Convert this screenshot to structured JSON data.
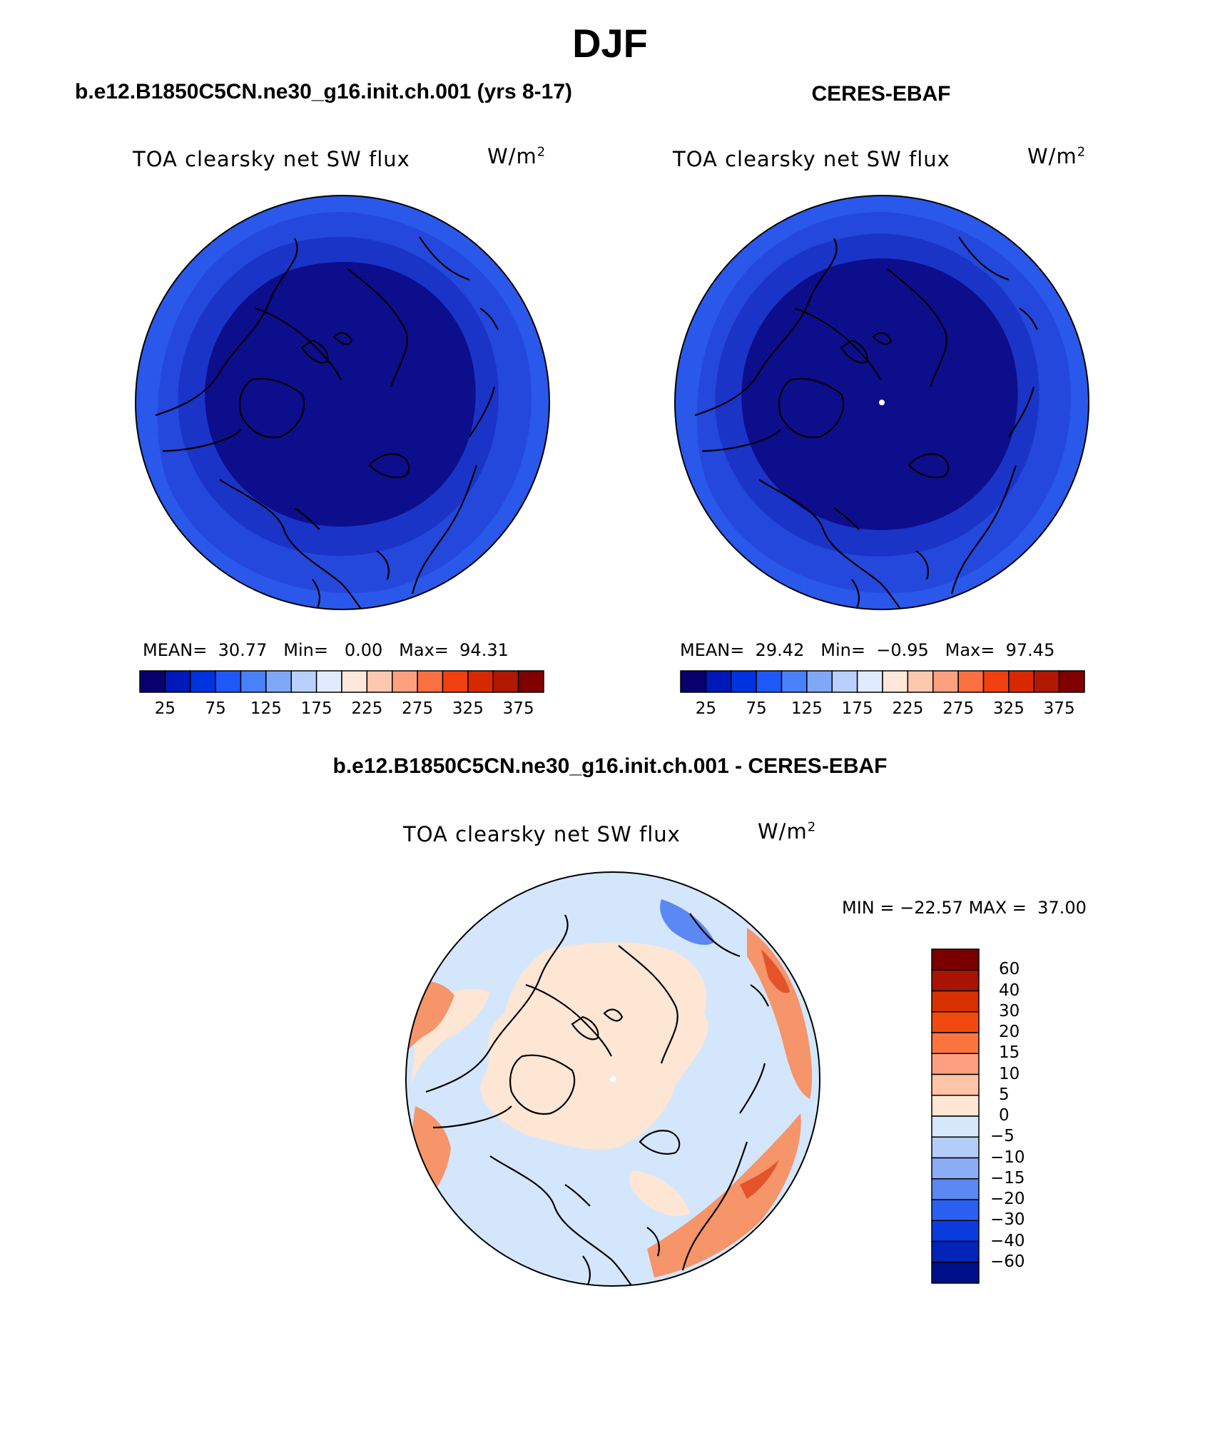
{
  "figure": {
    "title": "DJF"
  },
  "panels": [
    {
      "id": "model",
      "title": "b.e12.B1850C5CN.ne30_g16.init.ch.001 (yrs 8-17)",
      "left_label": "TOA clearsky net SW flux",
      "units_base": "W/m",
      "units_exp": "2",
      "mean_label": "MEAN=",
      "mean": "30.77",
      "min_label": "Min=",
      "min": "0.00",
      "max_label": "Max=",
      "max": "94.31",
      "colorbar": {
        "colors": [
          "#08006e",
          "#0018b8",
          "#0032e0",
          "#1f58f8",
          "#4a80fa",
          "#80a8f8",
          "#b8d0fb",
          "#e0ecfd",
          "#fde8da",
          "#fdc8b0",
          "#fca080",
          "#fa7040",
          "#f04010",
          "#d82800",
          "#b01800",
          "#800000"
        ],
        "tick_labels": [
          "25",
          "75",
          "125",
          "175",
          "225",
          "275",
          "325",
          "375"
        ]
      }
    },
    {
      "id": "obs",
      "title": "CERES-EBAF",
      "left_label": "TOA clearsky net SW flux",
      "units_base": "W/m",
      "units_exp": "2",
      "mean_label": "MEAN=",
      "mean": "29.42",
      "min_label": "Min=",
      "min": "−0.95",
      "max_label": "Max=",
      "max": "97.45",
      "colorbar": {
        "colors": [
          "#08006e",
          "#0018b8",
          "#0032e0",
          "#1f58f8",
          "#4a80fa",
          "#80a8f8",
          "#b8d0fb",
          "#e0ecfd",
          "#fde8da",
          "#fdc8b0",
          "#fca080",
          "#fa7040",
          "#f04010",
          "#d82800",
          "#b01800",
          "#800000"
        ],
        "tick_labels": [
          "25",
          "75",
          "125",
          "175",
          "225",
          "275",
          "325",
          "375"
        ]
      }
    }
  ],
  "diff": {
    "title": "b.e12.B1850C5CN.ne30_g16.init.ch.001 - CERES-EBAF",
    "left_label": "TOA clearsky net SW flux",
    "units_base": "W/m",
    "units_exp": "2",
    "min_label": "MIN =",
    "min": "−22.57",
    "max_label": "MAX =",
    "max": "37.00",
    "colorbar": {
      "colors_top_to_bottom": [
        "#7a0000",
        "#a81400",
        "#d83000",
        "#f04a10",
        "#fa7440",
        "#fca080",
        "#fdc4a8",
        "#fde6d4",
        "#d8e8fb",
        "#b4ccf8",
        "#8cacf6",
        "#5c88f4",
        "#2c60f0",
        "#0a3ce0",
        "#0424b8",
        "#00108a"
      ],
      "tick_labels_top_to_bottom": [
        "60",
        "40",
        "30",
        "20",
        "15",
        "10",
        "5",
        "0",
        "−5",
        "−10",
        "−15",
        "−20",
        "−30",
        "−40",
        "−60"
      ]
    }
  },
  "colors": {
    "ocean_outer": "#2a58ea",
    "ring_mid": "#1e3fd0",
    "core_dark": "#0d0e8c",
    "diff_blue": "#d4e6fb",
    "diff_peach": "#fde6d4",
    "diff_orange": "#f6946a",
    "diff_red": "#e4532a"
  }
}
